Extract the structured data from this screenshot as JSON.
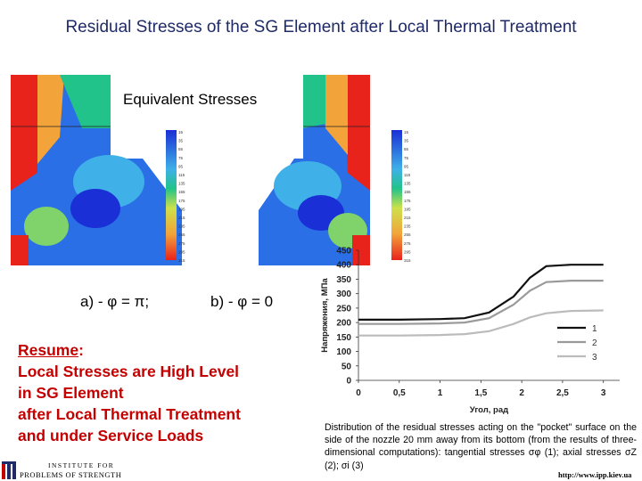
{
  "title": "Residual Stresses of the SG Element after Local Thermal Treatment",
  "fem": {
    "label": "Equivalent Stresses",
    "case_a": "a) - φ = π;",
    "case_b": "b) - φ = 0",
    "legend_values": [
      "15",
      "35",
      "55",
      "75",
      "95",
      "115",
      "135",
      "155",
      "175",
      "195",
      "215",
      "235",
      "255",
      "275",
      "295",
      "315"
    ],
    "colors": {
      "low": "#1a2fd6",
      "mid": "#3fb0e8",
      "green": "#22c38a",
      "warm": "#f2a33a",
      "high": "#e8231c"
    }
  },
  "resume": {
    "heading": "Resume",
    "colon": ":",
    "lines": [
      "Local Stresses are High Level",
      "in SG Element",
      "after Local Thermal Treatment",
      "and under Service Loads"
    ]
  },
  "chart_data": {
    "type": "line",
    "title": "",
    "xlabel": "Угол, рад",
    "ylabel": "Напряжения, МПа",
    "xlim": [
      0,
      3.2
    ],
    "ylim": [
      0,
      450
    ],
    "x_ticks": [
      "0",
      "0,5",
      "1",
      "1,5",
      "2",
      "2,5",
      "3"
    ],
    "y_ticks": [
      "0",
      "50",
      "100",
      "150",
      "200",
      "250",
      "300",
      "350",
      "400",
      "450"
    ],
    "legend": "right",
    "series": [
      {
        "name": "1",
        "color": "#111111",
        "x": [
          0,
          0.5,
          1.0,
          1.3,
          1.6,
          1.9,
          2.1,
          2.3,
          2.6,
          3.0
        ],
        "y": [
          210,
          210,
          212,
          215,
          235,
          290,
          355,
          395,
          400,
          400
        ]
      },
      {
        "name": "2",
        "color": "#9a9a9a",
        "x": [
          0,
          0.5,
          1.0,
          1.3,
          1.6,
          1.9,
          2.1,
          2.3,
          2.6,
          3.0
        ],
        "y": [
          195,
          195,
          197,
          200,
          215,
          262,
          310,
          340,
          345,
          345
        ]
      },
      {
        "name": "3",
        "color": "#bbbbbb",
        "x": [
          0,
          0.5,
          1.0,
          1.3,
          1.6,
          1.9,
          2.1,
          2.3,
          2.6,
          3.0
        ],
        "y": [
          155,
          155,
          157,
          160,
          170,
          195,
          218,
          232,
          240,
          242
        ]
      }
    ]
  },
  "caption": "Distribution of the residual stresses acting on the \"pocket\" surface on the side of the nozzle 20 mm away from its bottom (from the results of three-dimensional computations): tangential stresses σφ (1); axial stresses σZ (2); σi (3)",
  "logo": {
    "line1": "INSTITUTE FOR",
    "line2": "PROBLEMS OF STRENGTH"
  },
  "url": "http://www.ipp.kiev.ua"
}
